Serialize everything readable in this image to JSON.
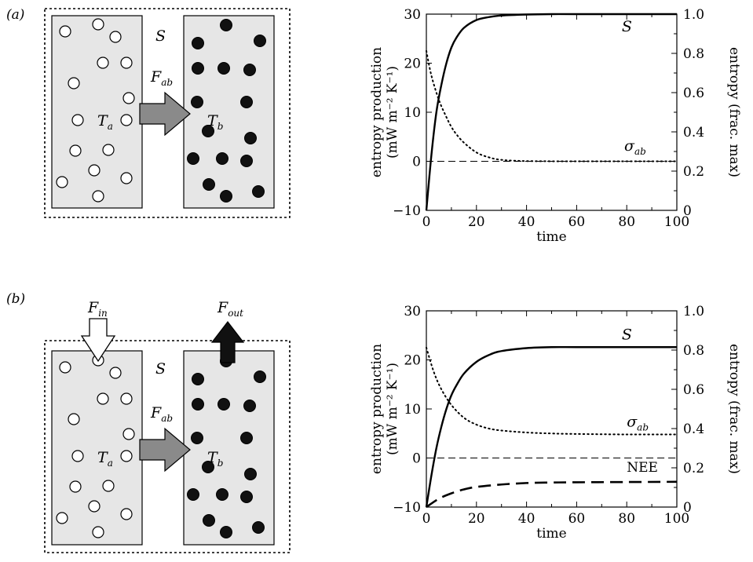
{
  "panels": [
    {
      "id": "a",
      "label": "(a)",
      "diagram": {
        "system_label": "S",
        "box_a_label": "T",
        "box_a_sub": "a",
        "box_b_label": "T",
        "box_b_sub": "b",
        "flux_label": "F",
        "flux_sub": "ab",
        "colors": {
          "box_fill": "#e6e6e6",
          "flux_arrow": "#8a8a8a",
          "particle_b": "#111111",
          "particle_a": "#ffffff"
        }
      }
    },
    {
      "id": "b",
      "label": "(b)",
      "diagram": {
        "system_label": "S",
        "box_a_label": "T",
        "box_a_sub": "a",
        "box_b_label": "T",
        "box_b_sub": "b",
        "flux_label": "F",
        "flux_sub": "ab",
        "in_label": "F",
        "in_sub": "in",
        "out_label": "F",
        "out_sub": "out",
        "colors": {
          "box_fill": "#e6e6e6",
          "flux_arrow": "#8a8a8a",
          "particle_b": "#111111",
          "particle_a": "#ffffff",
          "out_arrow": "#111111",
          "in_arrow": "#ffffff"
        }
      }
    }
  ],
  "chart_data": [
    {
      "panel": "a",
      "type": "line",
      "xlabel": "time",
      "ylabel_line1": "entropy production",
      "ylabel_line2": "(mW m⁻² K⁻¹)",
      "y2label": "entropy (frac. max)",
      "xlim": [
        0,
        100
      ],
      "ylim": [
        -10,
        30
      ],
      "y2lim": [
        0,
        1.0
      ],
      "xticks": [
        "0",
        "20",
        "40",
        "60",
        "80",
        "100"
      ],
      "yticks": [
        "−10",
        "0",
        "10",
        "20",
        "30"
      ],
      "y2ticks": [
        "0",
        "0.2",
        "0.4",
        "0.6",
        "0.8",
        "1.0"
      ],
      "series": [
        {
          "name": "S",
          "axis": "right",
          "style": "solid",
          "x": [
            0,
            2,
            4,
            6,
            8,
            10,
            12,
            15,
            20,
            25,
            30,
            40,
            50,
            60,
            80,
            100
          ],
          "y": [
            0,
            0.28,
            0.5,
            0.64,
            0.75,
            0.83,
            0.88,
            0.93,
            0.97,
            0.985,
            0.993,
            0.998,
            1.0,
            1.0,
            1.0,
            1.0
          ]
        },
        {
          "name": "σab",
          "axis": "left",
          "style": "dotted",
          "x": [
            0,
            2,
            5,
            8,
            10,
            12,
            15,
            20,
            25,
            30,
            40,
            60,
            80,
            100
          ],
          "y": [
            22.5,
            17.5,
            12.5,
            9.0,
            7.0,
            5.5,
            3.8,
            1.8,
            0.8,
            0.3,
            0.05,
            0,
            0,
            0
          ]
        },
        {
          "name": "",
          "axis": "left",
          "style": "dashed",
          "x": [
            0,
            100
          ],
          "y": [
            0,
            0
          ]
        }
      ],
      "annotations": [
        {
          "text": "S",
          "x": 78,
          "y": 26.5
        },
        {
          "text": "σ",
          "sub": "ab",
          "x": 79,
          "y": 2.2
        }
      ]
    },
    {
      "panel": "b",
      "type": "line",
      "xlabel": "time",
      "ylabel_line1": "entropy production",
      "ylabel_line2": "(mW m⁻² K⁻¹)",
      "y2label": "entropy (frac. max)",
      "xlim": [
        0,
        100
      ],
      "ylim": [
        -10,
        30
      ],
      "y2lim": [
        0,
        1.0
      ],
      "xticks": [
        "0",
        "20",
        "40",
        "60",
        "80",
        "100"
      ],
      "yticks": [
        "−10",
        "0",
        "10",
        "20",
        "30"
      ],
      "y2ticks": [
        "0",
        "0.2",
        "0.4",
        "0.6",
        "0.8",
        "1.0"
      ],
      "series": [
        {
          "name": "S",
          "axis": "right",
          "style": "solid",
          "x": [
            0,
            2,
            4,
            6,
            8,
            10,
            12,
            15,
            20,
            25,
            30,
            40,
            50,
            60,
            80,
            100
          ],
          "y": [
            0,
            0.16,
            0.3,
            0.41,
            0.5,
            0.57,
            0.62,
            0.68,
            0.74,
            0.775,
            0.795,
            0.81,
            0.815,
            0.815,
            0.815,
            0.815
          ]
        },
        {
          "name": "σab",
          "axis": "left",
          "style": "dotted",
          "x": [
            0,
            3,
            6,
            10,
            15,
            20,
            25,
            30,
            40,
            50,
            60,
            80,
            100
          ],
          "y": [
            22.5,
            17.5,
            14.0,
            10.8,
            8.2,
            6.8,
            6.0,
            5.6,
            5.2,
            5.0,
            4.9,
            4.8,
            4.8
          ]
        },
        {
          "name": "NEE",
          "axis": "left",
          "style": "longdash",
          "x": [
            0,
            5,
            10,
            15,
            20,
            30,
            40,
            50,
            60,
            80,
            100
          ],
          "y": [
            -10,
            -8.3,
            -7.2,
            -6.4,
            -5.9,
            -5.4,
            -5.1,
            -5.0,
            -4.95,
            -4.9,
            -4.85
          ]
        },
        {
          "name": "",
          "axis": "left",
          "style": "dashed",
          "x": [
            0,
            100
          ],
          "y": [
            0,
            0
          ]
        }
      ],
      "annotations": [
        {
          "text": "S",
          "x": 78,
          "y": 24.2
        },
        {
          "text": "σ",
          "sub": "ab",
          "x": 80,
          "y": 6.4
        },
        {
          "text": "NEE",
          "x": 80,
          "y": -2.8
        }
      ]
    }
  ]
}
